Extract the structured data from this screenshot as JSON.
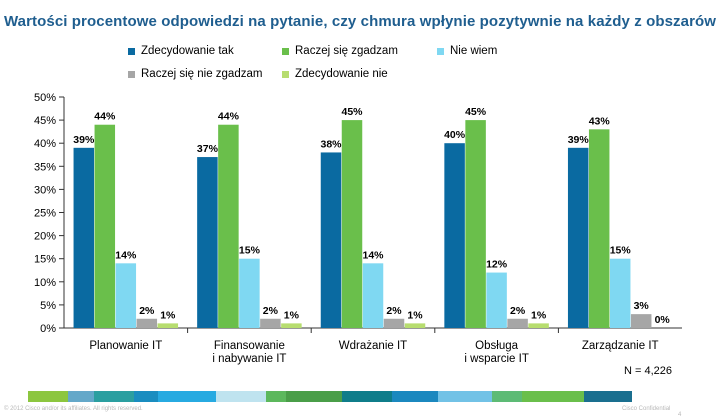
{
  "chart_data": {
    "type": "bar",
    "title": "Wartości procentowe odpowiedzi na pytanie, czy chmura wpłynie pozytywnie na każdy z obszarów",
    "categories": [
      [
        "Planowanie IT"
      ],
      [
        "Finansowanie",
        "i nabywanie IT"
      ],
      [
        "Wdrażanie IT"
      ],
      [
        "Obsługa",
        "i wsparcie IT"
      ],
      [
        "Zarządzanie IT"
      ]
    ],
    "series": [
      {
        "name": "Zdecydowanie tak",
        "color": "#0a6aa1",
        "values": [
          39,
          37,
          38,
          40,
          39
        ]
      },
      {
        "name": "Raczej się zgadzam",
        "color": "#6abf4b",
        "values": [
          44,
          44,
          45,
          45,
          43
        ]
      },
      {
        "name": "Nie wiem",
        "color": "#7fd8f2",
        "values": [
          14,
          15,
          14,
          12,
          15
        ]
      },
      {
        "name": "Raczej się nie zgadzam",
        "color": "#a6a6a6",
        "values": [
          2,
          2,
          2,
          2,
          3
        ]
      },
      {
        "name": "Zdecydowanie nie",
        "color": "#b7dd6f",
        "values": [
          1,
          1,
          1,
          1,
          0
        ]
      }
    ],
    "ylim": [
      0,
      50
    ],
    "yticks": [
      0,
      5,
      10,
      15,
      20,
      25,
      30,
      35,
      40,
      45,
      50
    ],
    "tick_suffix": "%",
    "legend_position": "top"
  },
  "footnote": "N = 4,226",
  "footer": {
    "left": "© 2012 Cisco and/or its affiliates. All rights reserved.",
    "right": "Cisco Confidential",
    "page": "4",
    "stripe_colors": [
      "#8cc63f",
      "#64a8c9",
      "#2b9fa0",
      "#1a8dc0",
      "#27aae1",
      "#bfe3ef",
      "#5cb85c",
      "#4a9e48",
      "#0f7d8a",
      "#1b88bf",
      "#72c2e6",
      "#5dbb75",
      "#6abf4b",
      "#1a6f8f"
    ]
  }
}
